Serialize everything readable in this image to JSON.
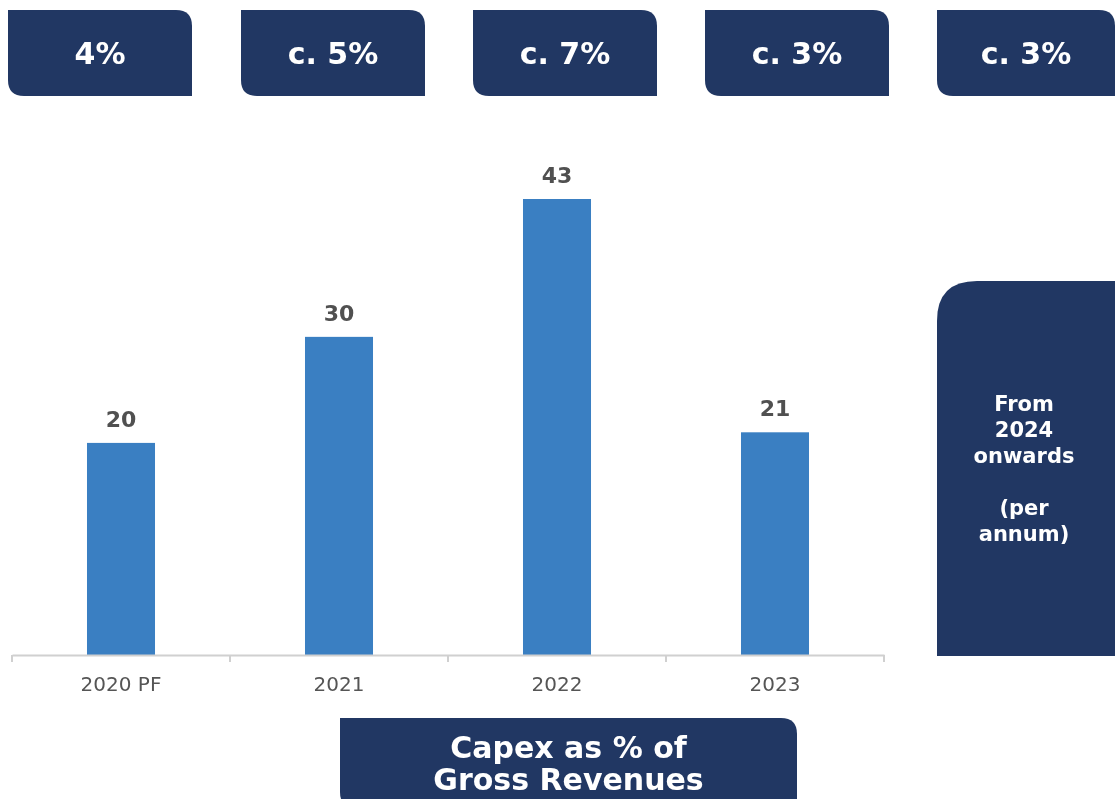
{
  "chart_data": {
    "type": "bar",
    "categories": [
      "2020 PF",
      "2021",
      "2022",
      "2023"
    ],
    "values": [
      20,
      30,
      43,
      21
    ],
    "color": "#3a7fc2",
    "data_labels": true,
    "annotations": [
      "4%",
      "c. 5%",
      "c. 7%",
      "c. 3%",
      "c. 3%",
      "From\n2024\nonwards\n\n(per\nannum)",
      "Capex as % of\nGross Revenues"
    ]
  }
}
